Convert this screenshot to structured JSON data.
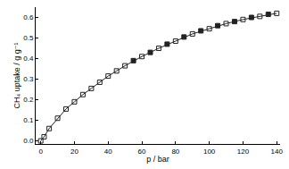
{
  "chart_data": {
    "type": "scatter",
    "x_label": "p / bar",
    "y_label": "CH₄ uptake / g g⁻¹",
    "xlim": [
      -3,
      142
    ],
    "ylim": [
      -0.015,
      0.65
    ],
    "xticks": [
      0,
      20,
      40,
      60,
      80,
      100,
      120,
      140
    ],
    "yticks": [
      {
        "value": 0,
        "label": "0.0"
      },
      0.1,
      0.2,
      0.3,
      0.4,
      0.5,
      0.6
    ],
    "grid": false,
    "series": [
      {
        "color": "#222222",
        "marker": "square-open",
        "line_style": "solid",
        "x": [
          0,
          2,
          5,
          10,
          15,
          20,
          25,
          30,
          35,
          40,
          45,
          50,
          60,
          70,
          80,
          90,
          100,
          110,
          120,
          130,
          140
        ],
        "values": [
          0,
          0.02,
          0.06,
          0.11,
          0.155,
          0.19,
          0.225,
          0.255,
          0.285,
          0.315,
          0.34,
          0.365,
          0.41,
          0.45,
          0.485,
          0.52,
          0.545,
          0.57,
          0.59,
          0.605,
          0.62
        ]
      },
      {
        "color": "#222222",
        "marker": "square",
        "x": [
          55,
          65,
          75,
          85,
          95,
          105,
          115,
          125,
          135
        ],
        "values": [
          0.39,
          0.43,
          0.47,
          0.505,
          0.535,
          0.56,
          0.58,
          0.6,
          0.615
        ]
      }
    ]
  }
}
